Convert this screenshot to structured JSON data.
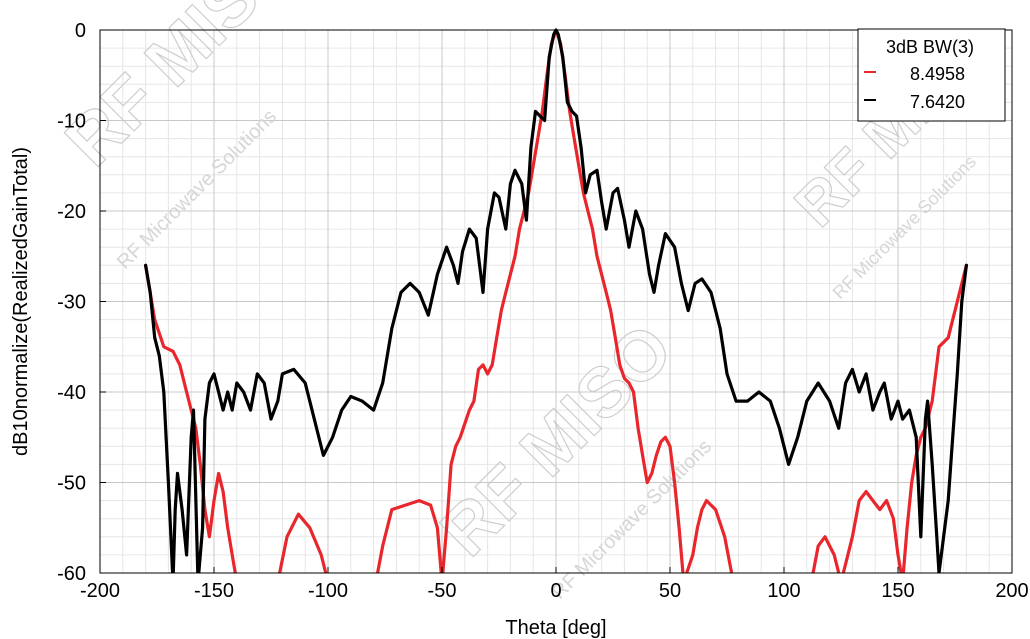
{
  "chart_data": {
    "type": "line",
    "title": "",
    "xlabel": "Theta [deg]",
    "ylabel": "dB10normalize(RealizedGainTotal)",
    "xlim": [
      -200,
      200
    ],
    "ylim": [
      -60,
      0
    ],
    "xticks": [
      -200,
      -150,
      -100,
      -50,
      0,
      50,
      100,
      150,
      200
    ],
    "yticks": [
      0,
      -10,
      -20,
      -30,
      -40,
      -50,
      -60
    ],
    "grid": true,
    "legend": {
      "placement": "top-right",
      "title": "3dB BW(3)",
      "entries": [
        {
          "color": "#e8262b",
          "value": "8.4958"
        },
        {
          "color": "#000000",
          "value": "7.6420"
        }
      ]
    },
    "series": [
      {
        "color": "#e8262b",
        "points": [
          [
            -180,
            -26
          ],
          [
            -176,
            -32
          ],
          [
            -172,
            -35
          ],
          [
            -168,
            -35.5
          ],
          [
            -165,
            -37
          ],
          [
            -162,
            -40
          ],
          [
            -160,
            -42
          ],
          [
            -158,
            -44
          ],
          [
            -156,
            -48
          ],
          [
            -154,
            -53
          ],
          [
            -152,
            -56
          ],
          [
            -150,
            -52
          ],
          [
            -148,
            -49
          ],
          [
            -146,
            -51
          ],
          [
            -144,
            -55
          ],
          [
            -142,
            -58
          ],
          [
            -140,
            -61
          ],
          [
            -122,
            -61
          ],
          [
            -118,
            -56
          ],
          [
            -113,
            -53.5
          ],
          [
            -108,
            -55
          ],
          [
            -103,
            -58
          ],
          [
            -100,
            -61
          ],
          [
            -79,
            -61
          ],
          [
            -76,
            -57
          ],
          [
            -72,
            -53
          ],
          [
            -66,
            -52.5
          ],
          [
            -60,
            -52
          ],
          [
            -55,
            -52.5
          ],
          [
            -52,
            -55
          ],
          [
            -50,
            -61
          ],
          [
            -48,
            -55
          ],
          [
            -46,
            -48
          ],
          [
            -44,
            -46
          ],
          [
            -42,
            -45
          ],
          [
            -40,
            -43.5
          ],
          [
            -38,
            -42
          ],
          [
            -36,
            -41
          ],
          [
            -34,
            -37.5
          ],
          [
            -32,
            -37
          ],
          [
            -30,
            -38
          ],
          [
            -28,
            -37
          ],
          [
            -26,
            -34
          ],
          [
            -24,
            -31
          ],
          [
            -22,
            -29
          ],
          [
            -20,
            -27
          ],
          [
            -18,
            -25
          ],
          [
            -16,
            -22
          ],
          [
            -14,
            -20
          ],
          [
            -12,
            -18
          ],
          [
            -10,
            -15
          ],
          [
            -8,
            -12
          ],
          [
            -6,
            -9
          ],
          [
            -4,
            -5
          ],
          [
            -2,
            -1.5
          ],
          [
            0,
            0
          ],
          [
            2,
            -1.5
          ],
          [
            4,
            -5
          ],
          [
            6,
            -9
          ],
          [
            8,
            -12
          ],
          [
            10,
            -15
          ],
          [
            12,
            -18
          ],
          [
            14,
            -20
          ],
          [
            16,
            -22
          ],
          [
            18,
            -25
          ],
          [
            20,
            -27
          ],
          [
            22,
            -29
          ],
          [
            24,
            -31
          ],
          [
            26,
            -34
          ],
          [
            28,
            -37
          ],
          [
            30,
            -38.5
          ],
          [
            32,
            -39
          ],
          [
            34,
            -40
          ],
          [
            36,
            -44
          ],
          [
            38,
            -47
          ],
          [
            40,
            -50
          ],
          [
            42,
            -49
          ],
          [
            44,
            -47
          ],
          [
            46,
            -45.5
          ],
          [
            48,
            -45
          ],
          [
            50,
            -46
          ],
          [
            52,
            -50
          ],
          [
            54,
            -55
          ],
          [
            56,
            -61
          ],
          [
            60,
            -58
          ],
          [
            62,
            -55
          ],
          [
            64,
            -53
          ],
          [
            66,
            -52
          ],
          [
            70,
            -53
          ],
          [
            74,
            -56
          ],
          [
            77,
            -60
          ],
          [
            78,
            -61
          ],
          [
            112,
            -61
          ],
          [
            115,
            -57
          ],
          [
            118,
            -56
          ],
          [
            122,
            -58
          ],
          [
            125,
            -61
          ],
          [
            127,
            -59
          ],
          [
            130,
            -56
          ],
          [
            133,
            -52
          ],
          [
            136,
            -51
          ],
          [
            139,
            -52
          ],
          [
            142,
            -53
          ],
          [
            145,
            -52
          ],
          [
            148,
            -54
          ],
          [
            150,
            -58
          ],
          [
            152,
            -61
          ],
          [
            154,
            -55
          ],
          [
            156,
            -50
          ],
          [
            158,
            -47
          ],
          [
            160,
            -45
          ],
          [
            162,
            -44
          ],
          [
            165,
            -41
          ],
          [
            168,
            -35
          ],
          [
            172,
            -34
          ],
          [
            176,
            -30
          ],
          [
            180,
            -26
          ]
        ]
      },
      {
        "color": "#000000",
        "points": [
          [
            -180,
            -26
          ],
          [
            -178,
            -29
          ],
          [
            -176,
            -34
          ],
          [
            -174,
            -36
          ],
          [
            -172,
            -40
          ],
          [
            -170,
            -50
          ],
          [
            -168,
            -61
          ],
          [
            -167,
            -53
          ],
          [
            -166,
            -49
          ],
          [
            -164,
            -53
          ],
          [
            -162,
            -58
          ],
          [
            -160,
            -45
          ],
          [
            -159,
            -42
          ],
          [
            -157,
            -61
          ],
          [
            -155,
            -55
          ],
          [
            -154,
            -43
          ],
          [
            -152,
            -39
          ],
          [
            -150,
            -38
          ],
          [
            -148,
            -40
          ],
          [
            -146,
            -42
          ],
          [
            -144,
            -40
          ],
          [
            -142,
            -42
          ],
          [
            -140,
            -39
          ],
          [
            -137,
            -40
          ],
          [
            -134,
            -42
          ],
          [
            -131,
            -38
          ],
          [
            -128,
            -39
          ],
          [
            -125,
            -43
          ],
          [
            -122,
            -41
          ],
          [
            -120,
            -38
          ],
          [
            -115,
            -37.5
          ],
          [
            -110,
            -39
          ],
          [
            -106,
            -43
          ],
          [
            -102,
            -47
          ],
          [
            -98,
            -45
          ],
          [
            -94,
            -42
          ],
          [
            -90,
            -40.5
          ],
          [
            -85,
            -41
          ],
          [
            -80,
            -42
          ],
          [
            -76,
            -39
          ],
          [
            -72,
            -33
          ],
          [
            -68,
            -29
          ],
          [
            -64,
            -28
          ],
          [
            -60,
            -29
          ],
          [
            -56,
            -31.5
          ],
          [
            -52,
            -27
          ],
          [
            -48,
            -24
          ],
          [
            -45,
            -26
          ],
          [
            -43,
            -28
          ],
          [
            -41,
            -24.5
          ],
          [
            -38,
            -22
          ],
          [
            -35,
            -23
          ],
          [
            -32,
            -29
          ],
          [
            -30,
            -22
          ],
          [
            -27,
            -18
          ],
          [
            -25,
            -18.5
          ],
          [
            -22,
            -22
          ],
          [
            -20,
            -17
          ],
          [
            -18,
            -15.5
          ],
          [
            -15,
            -17
          ],
          [
            -13,
            -21
          ],
          [
            -11,
            -13
          ],
          [
            -9,
            -9
          ],
          [
            -7,
            -9.5
          ],
          [
            -5,
            -10
          ],
          [
            -3,
            -3
          ],
          [
            -1,
            -0.5
          ],
          [
            0,
            0
          ],
          [
            1,
            -0.5
          ],
          [
            3,
            -3
          ],
          [
            5,
            -8
          ],
          [
            7,
            -9
          ],
          [
            9,
            -9.5
          ],
          [
            11,
            -13
          ],
          [
            13,
            -18
          ],
          [
            15,
            -16
          ],
          [
            18,
            -15.5
          ],
          [
            20,
            -19
          ],
          [
            22,
            -22
          ],
          [
            25,
            -18
          ],
          [
            27,
            -17.5
          ],
          [
            30,
            -21
          ],
          [
            32,
            -24
          ],
          [
            35,
            -20
          ],
          [
            38,
            -22
          ],
          [
            41,
            -27
          ],
          [
            43,
            -29
          ],
          [
            45,
            -26
          ],
          [
            48,
            -22.5
          ],
          [
            52,
            -24
          ],
          [
            55,
            -28
          ],
          [
            58,
            -31
          ],
          [
            61,
            -28
          ],
          [
            64,
            -27.5
          ],
          [
            68,
            -29
          ],
          [
            72,
            -33
          ],
          [
            75,
            -38
          ],
          [
            79,
            -41
          ],
          [
            84,
            -41
          ],
          [
            89,
            -40
          ],
          [
            94,
            -41
          ],
          [
            98,
            -44
          ],
          [
            102,
            -48
          ],
          [
            106,
            -45
          ],
          [
            110,
            -41
          ],
          [
            115,
            -39
          ],
          [
            120,
            -41
          ],
          [
            124,
            -44
          ],
          [
            127,
            -39
          ],
          [
            130,
            -37.5
          ],
          [
            133,
            -40
          ],
          [
            136,
            -38
          ],
          [
            139,
            -42
          ],
          [
            142,
            -40
          ],
          [
            144,
            -39
          ],
          [
            147,
            -43
          ],
          [
            150,
            -41
          ],
          [
            152,
            -43
          ],
          [
            155,
            -42
          ],
          [
            158,
            -45
          ],
          [
            160,
            -56
          ],
          [
            162,
            -43
          ],
          [
            163,
            -41
          ],
          [
            165,
            -48
          ],
          [
            167,
            -56
          ],
          [
            168,
            -60
          ],
          [
            170,
            -56
          ],
          [
            172,
            -52
          ],
          [
            174,
            -45
          ],
          [
            176,
            -38
          ],
          [
            178,
            -30
          ],
          [
            180,
            -26
          ]
        ]
      }
    ]
  },
  "watermark": {
    "brand": "RF MISO",
    "tagline": "RF Microwave Solutions"
  }
}
